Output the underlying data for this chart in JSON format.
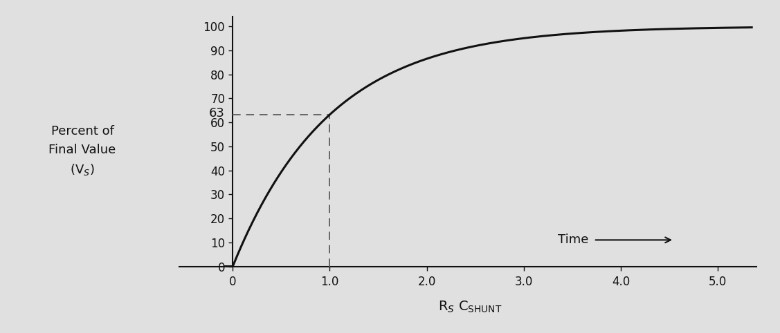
{
  "background_color": "#e0e0e0",
  "plot_bg_color": "#e8e8e8",
  "curve_color": "#111111",
  "dashed_color": "#666666",
  "line_width": 2.2,
  "xlim": [
    -0.55,
    5.4
  ],
  "ylim": [
    0,
    104
  ],
  "xticks": [
    0.0,
    1.0,
    2.0,
    3.0,
    4.0,
    5.0
  ],
  "xtick_labels": [
    "0",
    "1.0",
    "2.0",
    "3.0",
    "4.0",
    "5.0"
  ],
  "yticks": [
    0,
    10,
    20,
    30,
    40,
    50,
    60,
    70,
    80,
    90,
    100
  ],
  "tau_x": 1.0,
  "tau_y": 63.2,
  "annotation_63": "63",
  "ylabel_text": "Percent of\nFinal Value\n(V$_S$)",
  "xlabel_text": "R$_S$ C$_{\\mathrm{SHUNT}}$",
  "time_label": "Time",
  "curve_x_start": -0.08,
  "curve_x_end": 5.35,
  "tick_fontsize": 12,
  "label_fontsize": 13,
  "xlabel_fontsize": 14,
  "annotation_fontsize": 13
}
